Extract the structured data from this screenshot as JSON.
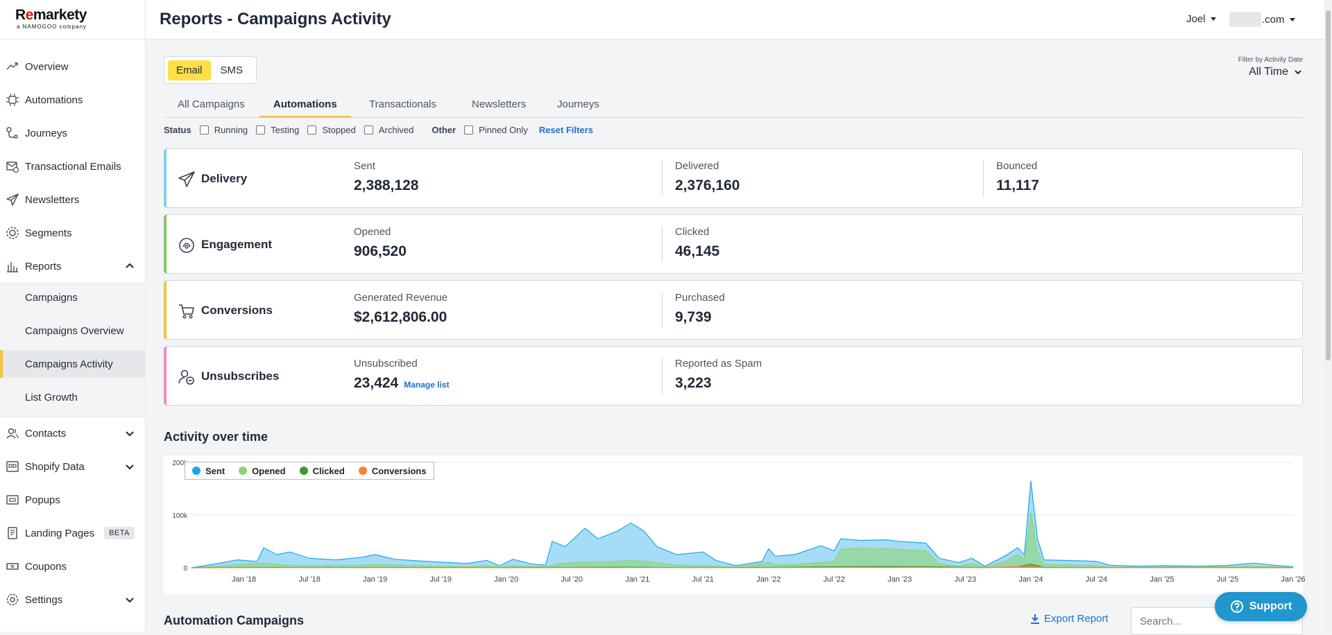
{
  "logo": {
    "brand_prefix": "R",
    "brand_e": "e",
    "brand_suffix": "markety",
    "tagline": "a NAMOGOO company"
  },
  "sidebar": {
    "items": [
      {
        "label": "Overview",
        "icon": "trend-icon"
      },
      {
        "label": "Automations",
        "icon": "automation-icon"
      },
      {
        "label": "Journeys",
        "icon": "journey-icon"
      },
      {
        "label": "Transactional Emails",
        "icon": "transactional-email-icon"
      },
      {
        "label": "Newsletters",
        "icon": "paper-plane-icon"
      },
      {
        "label": "Segments",
        "icon": "segments-icon"
      },
      {
        "label": "Reports",
        "icon": "reports-icon"
      },
      {
        "label": "Contacts",
        "icon": "contacts-icon"
      },
      {
        "label": "Shopify Data",
        "icon": "shopify-data-icon"
      },
      {
        "label": "Popups",
        "icon": "popup-icon"
      },
      {
        "label": "Landing Pages",
        "icon": "landing-page-icon",
        "badge": "BETA"
      },
      {
        "label": "Coupons",
        "icon": "coupon-icon"
      },
      {
        "label": "Settings",
        "icon": "gear-icon"
      }
    ],
    "reports_sub": [
      "Campaigns",
      "Campaigns Overview",
      "Campaigns Activity",
      "List Growth"
    ]
  },
  "header": {
    "title": "Reports - Campaigns Activity",
    "user": "Joel",
    "domain_suffix": ".com"
  },
  "channel_toggle": {
    "email": "Email",
    "sms": "SMS",
    "selected": "Email"
  },
  "date_filter": {
    "label": "Filter by Activity Date",
    "value": "All Time"
  },
  "tabs": [
    "All Campaigns",
    "Automations",
    "Transactionals",
    "Newsletters",
    "Journeys"
  ],
  "active_tab": "Automations",
  "filters": {
    "status_label": "Status",
    "status": [
      "Running",
      "Testing",
      "Stopped",
      "Archived"
    ],
    "other_label": "Other",
    "other": [
      "Pinned Only"
    ],
    "reset": "Reset Filters"
  },
  "cards": {
    "delivery": {
      "title": "Delivery",
      "color": "#7dd3e8",
      "metrics": [
        {
          "label": "Sent",
          "value": "2,388,128"
        },
        {
          "label": "Delivered",
          "value": "2,376,160"
        },
        {
          "label": "Bounced",
          "value": "11,117"
        }
      ]
    },
    "engagement": {
      "title": "Engagement",
      "color": "#86c46a",
      "metrics": [
        {
          "label": "Opened",
          "value": "906,520"
        },
        {
          "label": "Clicked",
          "value": "46,145"
        }
      ]
    },
    "conversions": {
      "title": "Conversions",
      "color": "#f6c343",
      "metrics": [
        {
          "label": "Generated Revenue",
          "value": "$2,612,806.00"
        },
        {
          "label": "Purchased",
          "value": "9,739"
        }
      ]
    },
    "unsubscribes": {
      "title": "Unsubscribes",
      "color": "#f08cc0",
      "metrics": [
        {
          "label": "Unsubscribed",
          "value": "23,424"
        },
        {
          "label": "Reported as Spam",
          "value": "3,223"
        }
      ],
      "manage_link": "Manage list"
    }
  },
  "activity_title": "Activity over time",
  "chart_data": {
    "type": "area",
    "legend": [
      "Sent",
      "Opened",
      "Clicked",
      "Conversions"
    ],
    "colors": {
      "Sent": "#1ea7e8",
      "Opened": "#8fd475",
      "Clicked": "#3f9a2e",
      "Conversions": "#ff7f36"
    },
    "y_ticks": [
      "0",
      "100k",
      "200k"
    ],
    "ylim": [
      0,
      200000
    ],
    "x_ticks": [
      "Jan '18",
      "Jul '18",
      "Jan '19",
      "Jul '19",
      "Jan '20",
      "Jul '20",
      "Jan '21",
      "Jul '21",
      "Jan '22",
      "Jul '22",
      "Jan '23",
      "Jul '23",
      "Jan '24",
      "Jul '24",
      "Jan '25",
      "Jul '25",
      "Jan '26"
    ],
    "x_range": [
      2017.6,
      2026.0
    ],
    "series": [
      {
        "name": "Sent",
        "points": [
          [
            2017.6,
            0
          ],
          [
            2017.8,
            8000
          ],
          [
            2017.95,
            15000
          ],
          [
            2018.1,
            12000
          ],
          [
            2018.15,
            38000
          ],
          [
            2018.25,
            25000
          ],
          [
            2018.35,
            30000
          ],
          [
            2018.5,
            18000
          ],
          [
            2018.7,
            15000
          ],
          [
            2018.9,
            20000
          ],
          [
            2019.0,
            25000
          ],
          [
            2019.15,
            16000
          ],
          [
            2019.4,
            12000
          ],
          [
            2019.7,
            8000
          ],
          [
            2019.85,
            14000
          ],
          [
            2019.95,
            4000
          ],
          [
            2020.05,
            16000
          ],
          [
            2020.2,
            7000
          ],
          [
            2020.3,
            5000
          ],
          [
            2020.35,
            50000
          ],
          [
            2020.45,
            40000
          ],
          [
            2020.6,
            75000
          ],
          [
            2020.7,
            55000
          ],
          [
            2020.85,
            70000
          ],
          [
            2020.95,
            85000
          ],
          [
            2021.05,
            70000
          ],
          [
            2021.15,
            40000
          ],
          [
            2021.3,
            25000
          ],
          [
            2021.5,
            30000
          ],
          [
            2021.6,
            14000
          ],
          [
            2021.75,
            4000
          ],
          [
            2021.85,
            8000
          ],
          [
            2021.95,
            12000
          ],
          [
            2022.0,
            36000
          ],
          [
            2022.05,
            22000
          ],
          [
            2022.2,
            25000
          ],
          [
            2022.4,
            42000
          ],
          [
            2022.5,
            32000
          ],
          [
            2022.55,
            55000
          ],
          [
            2022.7,
            52000
          ],
          [
            2022.9,
            53000
          ],
          [
            2023.0,
            50000
          ],
          [
            2023.2,
            47000
          ],
          [
            2023.3,
            18000
          ],
          [
            2023.45,
            10000
          ],
          [
            2023.55,
            18000
          ],
          [
            2023.65,
            3000
          ],
          [
            2023.8,
            22000
          ],
          [
            2023.9,
            38000
          ],
          [
            2023.95,
            25000
          ],
          [
            2024.0,
            165000
          ],
          [
            2024.05,
            55000
          ],
          [
            2024.1,
            15000
          ],
          [
            2024.4,
            13000
          ],
          [
            2024.5,
            12000
          ],
          [
            2024.6,
            5000
          ],
          [
            2024.8,
            3000
          ],
          [
            2025.0,
            4000
          ],
          [
            2025.3,
            3000
          ],
          [
            2025.5,
            4500
          ],
          [
            2025.7,
            9000
          ],
          [
            2025.85,
            5000
          ],
          [
            2026.0,
            2000
          ]
        ]
      },
      {
        "name": "Opened",
        "points": [
          [
            2017.6,
            0
          ],
          [
            2017.8,
            3000
          ],
          [
            2018.15,
            9000
          ],
          [
            2018.3,
            5000
          ],
          [
            2018.5,
            4000
          ],
          [
            2018.9,
            5000
          ],
          [
            2019.0,
            6000
          ],
          [
            2019.4,
            3000
          ],
          [
            2019.7,
            2000
          ],
          [
            2019.85,
            4000
          ],
          [
            2019.95,
            1500
          ],
          [
            2020.05,
            4000
          ],
          [
            2020.3,
            1500
          ],
          [
            2020.4,
            8000
          ],
          [
            2020.6,
            11000
          ],
          [
            2020.8,
            12000
          ],
          [
            2020.95,
            14000
          ],
          [
            2021.1,
            11000
          ],
          [
            2021.3,
            5000
          ],
          [
            2021.6,
            3000
          ],
          [
            2021.75,
            1000
          ],
          [
            2022.0,
            10000
          ],
          [
            2022.05,
            5000
          ],
          [
            2022.3,
            8000
          ],
          [
            2022.5,
            12000
          ],
          [
            2022.55,
            35000
          ],
          [
            2022.7,
            37000
          ],
          [
            2022.9,
            36000
          ],
          [
            2023.2,
            32000
          ],
          [
            2023.3,
            8000
          ],
          [
            2023.45,
            3000
          ],
          [
            2023.55,
            8000
          ],
          [
            2023.65,
            1000
          ],
          [
            2023.8,
            12000
          ],
          [
            2023.9,
            25000
          ],
          [
            2023.95,
            15000
          ],
          [
            2024.0,
            105000
          ],
          [
            2024.05,
            30000
          ],
          [
            2024.1,
            6000
          ],
          [
            2024.4,
            5000
          ],
          [
            2024.5,
            4000
          ],
          [
            2024.6,
            1500
          ],
          [
            2024.8,
            1000
          ],
          [
            2025.0,
            1500
          ],
          [
            2025.5,
            2000
          ],
          [
            2025.7,
            3000
          ],
          [
            2025.85,
            2000
          ],
          [
            2026.0,
            700
          ]
        ]
      },
      {
        "name": "Clicked",
        "points": [
          [
            2017.6,
            0
          ],
          [
            2018.15,
            700
          ],
          [
            2018.5,
            400
          ],
          [
            2019.0,
            500
          ],
          [
            2020.0,
            300
          ],
          [
            2020.6,
            900
          ],
          [
            2020.95,
            1200
          ],
          [
            2021.3,
            400
          ],
          [
            2022.0,
            700
          ],
          [
            2022.55,
            2200
          ],
          [
            2022.9,
            2400
          ],
          [
            2023.2,
            2100
          ],
          [
            2023.65,
            300
          ],
          [
            2023.9,
            1800
          ],
          [
            2024.0,
            7000
          ],
          [
            2024.1,
            700
          ],
          [
            2024.5,
            300
          ],
          [
            2025.0,
            150
          ],
          [
            2025.7,
            250
          ],
          [
            2026.0,
            80
          ]
        ]
      },
      {
        "name": "Conversions",
        "points": [
          [
            2017.6,
            0
          ],
          [
            2018.15,
            300
          ],
          [
            2019.0,
            200
          ],
          [
            2020.0,
            150
          ],
          [
            2020.95,
            450
          ],
          [
            2022.0,
            300
          ],
          [
            2022.55,
            900
          ],
          [
            2023.2,
            800
          ],
          [
            2023.65,
            150
          ],
          [
            2024.0,
            2800
          ],
          [
            2024.1,
            300
          ],
          [
            2025.0,
            80
          ],
          [
            2026.0,
            40
          ]
        ]
      }
    ]
  },
  "campaigns_section": {
    "title": "Automation Campaigns",
    "export": "Export Report",
    "search_placeholder": "Search..."
  },
  "support": {
    "label": "Support"
  }
}
